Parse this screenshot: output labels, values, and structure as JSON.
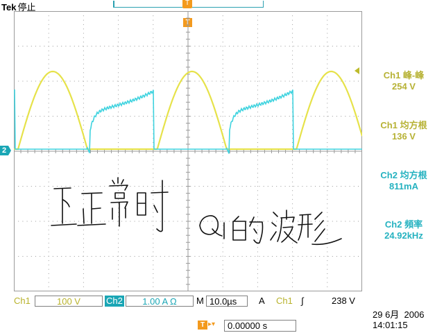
{
  "header": {
    "brand": "Tek",
    "status": "停止",
    "trigger_position_icon": "T",
    "trigger_marker_icon": "T"
  },
  "channel_markers": {
    "ch2": "2"
  },
  "measurements": [
    {
      "label": "Ch1 峰-峰",
      "value": "254 V",
      "channel": "Ch1"
    },
    {
      "label": "Ch1 均方根",
      "value": "136 V",
      "channel": "Ch1"
    },
    {
      "label": "Ch2 均方根",
      "value": "811mA",
      "channel": "Ch2"
    },
    {
      "label": "Ch2 頻率",
      "value": "24.92kHz",
      "channel": "Ch2"
    }
  ],
  "bottom_bar": {
    "ch1_label": "Ch1",
    "ch1_scale": "100 V",
    "ch2_label": "Ch2",
    "ch2_scale": "1.00 A Ω",
    "timebase_label": "M",
    "timebase": "10.0µs",
    "trigger_mode": "A",
    "trigger_source": "Ch1",
    "trigger_slope": "∫",
    "trigger_level": "238 V"
  },
  "datetime": {
    "date": "29 6月  2006",
    "time": "14:01:15"
  },
  "trigger_position": {
    "icon": "T",
    "arrow": "▸▾",
    "value": "0.00000 s"
  },
  "annotation": {
    "handwritten_text": "下正常时Q1的波形",
    "is_handwritten_picture": true
  },
  "colors": {
    "ch1": "#e6e24a",
    "ch2": "#3fd3df",
    "grid": "#9a9a9a",
    "trigger": "#f39a1e"
  },
  "icons": [
    "trigger-position-icon",
    "trigger-level-icon",
    "ch2-ground-marker-icon",
    "rising-slope-icon"
  ]
}
